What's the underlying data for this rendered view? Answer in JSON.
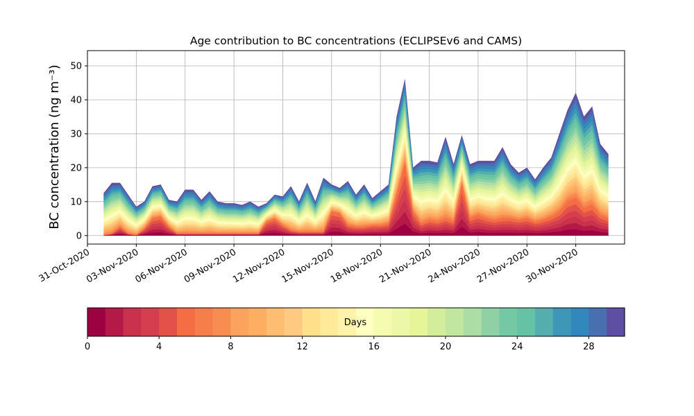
{
  "chart_data": {
    "type": "area",
    "stacked": true,
    "title": "Age contribution to BC concentrations (ECLIPSEv6 and CAMS)",
    "xlabel": "",
    "ylabel": "BC concentration (ng m⁻³)",
    "x_start": "01-Nov-2020",
    "x_end": "02-Dec-2020",
    "xlim": [
      -1.0,
      32.0
    ],
    "ylim": [
      -2.5,
      54.5
    ],
    "xtick_positions": [
      -1,
      2,
      5,
      8,
      11,
      14,
      17,
      20,
      23,
      26,
      29
    ],
    "xtick_labels": [
      "31-Oct-2020",
      "03-Nov-2020",
      "06-Nov-2020",
      "09-Nov-2020",
      "12-Nov-2020",
      "15-Nov-2020",
      "18-Nov-2020",
      "21-Nov-2020",
      "24-Nov-2020",
      "27-Nov-2020",
      "30-Nov-2020"
    ],
    "yticks": [
      0,
      10,
      20,
      30,
      40,
      50
    ],
    "grid": true,
    "x_days": [
      0,
      0.5,
      1,
      1.5,
      2,
      2.5,
      3,
      3.5,
      4,
      4.5,
      5,
      5.5,
      6,
      6.5,
      7,
      7.5,
      8,
      8.5,
      9,
      9.5,
      10,
      10.5,
      11,
      11.5,
      12,
      12.5,
      13,
      13.5,
      14,
      14.5,
      15,
      15.5,
      16,
      16.5,
      17,
      17.5,
      18,
      18.5,
      19,
      19.5,
      20,
      20.5,
      21,
      21.5,
      22,
      22.5,
      23,
      23.5,
      24,
      24.5,
      25,
      25.5,
      26,
      26.5,
      27,
      27.5,
      28,
      28.5,
      29,
      29.5,
      30,
      30.5,
      31
    ],
    "total_concentration": [
      12.5,
      15.5,
      15.5,
      12,
      8.5,
      10,
      14.5,
      15,
      10.5,
      10,
      13.5,
      13.5,
      10.5,
      13,
      10,
      9.5,
      9.5,
      9,
      10,
      8.5,
      9.5,
      12,
      11.5,
      14.5,
      10,
      15.5,
      10,
      17,
      15,
      14,
      16,
      12,
      15,
      11,
      13,
      15,
      35,
      46,
      20,
      22,
      22,
      21.5,
      29,
      21,
      29.5,
      21,
      22,
      22,
      22,
      26,
      21,
      18.5,
      20,
      16.5,
      20,
      23,
      30,
      37,
      42,
      35,
      38,
      27,
      24
    ],
    "young_age_contribution": [
      0,
      0.5,
      2.5,
      0.5,
      0,
      2,
      5,
      5.5,
      2.5,
      0.5,
      0.5,
      0.5,
      0.5,
      0.5,
      0.5,
      0.5,
      0.5,
      0.5,
      0.5,
      0.5,
      4,
      5,
      3,
      1.5,
      1,
      1,
      1,
      1,
      7,
      6.5,
      3,
      2.5,
      2.5,
      3,
      3,
      3.5,
      12,
      21,
      7,
      3.5,
      4.5,
      4,
      5,
      4,
      15,
      5,
      6,
      5,
      4.5,
      5,
      5,
      4.5,
      5,
      4,
      4.5,
      5.5,
      7,
      10,
      11,
      8,
      9,
      6,
      5
    ],
    "colorbar": {
      "label": "Days",
      "range": [
        0,
        30
      ],
      "ticks": [
        0,
        4,
        8,
        12,
        16,
        20,
        24,
        28
      ],
      "tick_labels": [
        "0",
        "4",
        "8",
        "12",
        "16",
        "20",
        "24",
        "28"
      ],
      "levels": 30,
      "colormap": "Spectral",
      "colors": [
        "#9e0142",
        "#b41947",
        "#c9314c",
        "#d53e4f",
        "#e25249",
        "#f46d43",
        "#f67e4b",
        "#f88d51",
        "#fba25d",
        "#fdae61",
        "#fdbe6f",
        "#fec980",
        "#fee08b",
        "#feea9a",
        "#fff3ac",
        "#ffffbf",
        "#f6fbb2",
        "#ecf7a7",
        "#e6f598",
        "#d2ed9b",
        "#c0e69f",
        "#abdda4",
        "#8fd1a4",
        "#75c8a4",
        "#66c2a5",
        "#53aead",
        "#3f97b7",
        "#3288bd",
        "#4a6fb1",
        "#5e4fa2"
      ]
    }
  }
}
